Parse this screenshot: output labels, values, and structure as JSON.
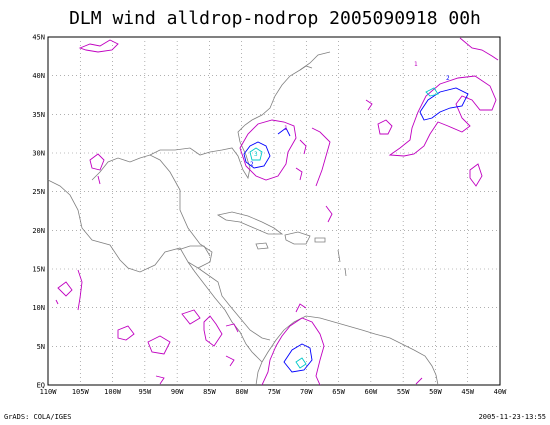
{
  "title": "DLM wind alldrop-nodrop 2005090918 00h",
  "footer": {
    "left": "GrADS: COLA/IGES",
    "right": "2005-11-23-13:55"
  },
  "axes": {
    "lon_labels": [
      "110W",
      "105W",
      "100W",
      "95W",
      "90W",
      "85W",
      "80W",
      "75W",
      "70W",
      "65W",
      "60W",
      "55W",
      "50W",
      "45W",
      "40W"
    ],
    "lat_labels": [
      "EQ",
      "5N",
      "10N",
      "15N",
      "20N",
      "25N",
      "30N",
      "35N",
      "40N",
      "45N"
    ]
  },
  "colors": {
    "coast": "#808080",
    "grid": "#808080",
    "contour_1": "#c000c0",
    "contour_2": "#0000ff",
    "contour_3": "#00c8c8"
  },
  "chart_data": {
    "type": "map",
    "lon_range": [
      -110,
      -40
    ],
    "lat_range": [
      0,
      45
    ],
    "grid": true,
    "contour_levels": [
      {
        "level": 1,
        "color": "#c000c0"
      },
      {
        "level": 2,
        "color": "#0000ff"
      },
      {
        "level": 3,
        "color": "#00c8c8"
      }
    ],
    "contour_labels": [
      "1",
      "2",
      "1",
      "2",
      "3"
    ]
  }
}
